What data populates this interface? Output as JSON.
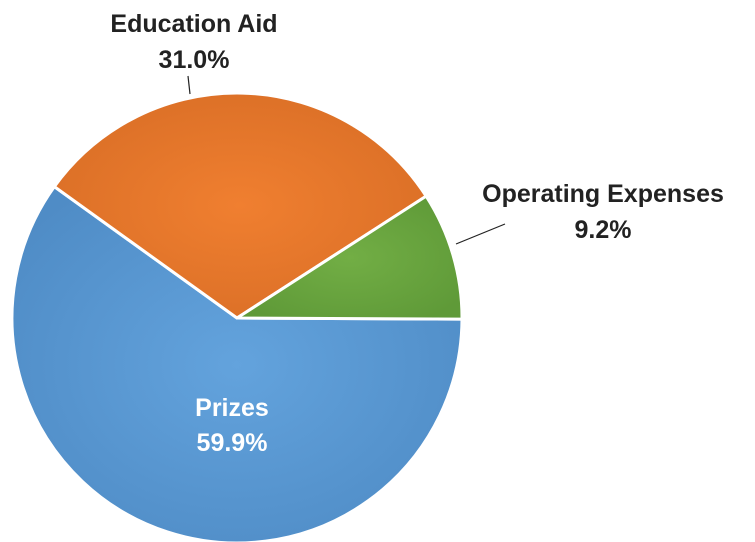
{
  "chart_data": {
    "type": "pie",
    "title": "",
    "slices": [
      {
        "label": "Prizes",
        "value": 59.9,
        "value_label": "59.9%",
        "color": "#5B9BD5",
        "label_placement": "inside"
      },
      {
        "label": "Education Aid",
        "value": 31.0,
        "value_label": "31.0%",
        "color": "#ED7D31",
        "label_placement": "outside-top"
      },
      {
        "label": "Operating Expenses",
        "value": 9.2,
        "value_label": "9.2%",
        "color": "#70AD47",
        "label_placement": "outside-right"
      }
    ],
    "legend": "none",
    "data_labels": "category and percentage"
  }
}
